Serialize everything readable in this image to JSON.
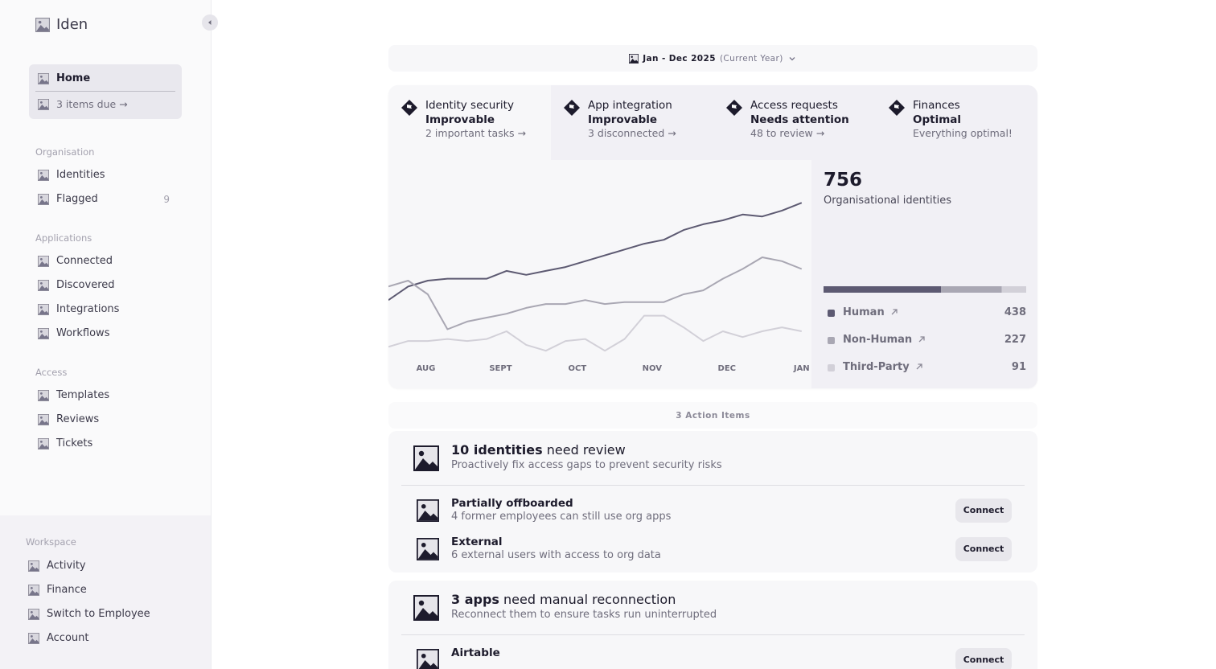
{
  "sidebar": {
    "brand": "Iden",
    "home": {
      "label": "Home",
      "due": "3 items due →"
    },
    "sections": [
      {
        "title": "Organisation",
        "items": [
          {
            "label": "Identities"
          },
          {
            "label": "Flagged",
            "count": 9
          }
        ]
      },
      {
        "title": "Applications",
        "items": [
          {
            "label": "Connected"
          },
          {
            "label": "Discovered"
          },
          {
            "label": "Integrations"
          },
          {
            "label": "Workflows"
          }
        ]
      },
      {
        "title": "Access",
        "items": [
          {
            "label": "Templates"
          },
          {
            "label": "Reviews"
          },
          {
            "label": "Tickets"
          }
        ]
      }
    ],
    "workspace": {
      "title": "Workspace",
      "items": [
        {
          "label": "Activity"
        },
        {
          "label": "Finance"
        },
        {
          "label": "Switch to Employee"
        },
        {
          "label": "Account"
        }
      ]
    }
  },
  "date_range": {
    "label": "Jan - Dec 2025",
    "note": "(Current Year)"
  },
  "tabs": [
    {
      "title": "Identity security",
      "status": "Improvable",
      "detail": "2 important tasks →"
    },
    {
      "title": "App integration",
      "status": "Improvable",
      "detail": "3 disconnected →"
    },
    {
      "title": "Access requests",
      "status": "Needs attention",
      "detail": "48 to review →"
    },
    {
      "title": "Finances",
      "status": "Optimal",
      "detail": "Everything optimal!"
    }
  ],
  "chart_data": {
    "type": "line",
    "total": 756,
    "total_label": "Organisational identities",
    "x": [
      0,
      1,
      2,
      3,
      4,
      5,
      6,
      7,
      8,
      9,
      10,
      11,
      12,
      13,
      14,
      15,
      16,
      17,
      18,
      19,
      20,
      21
    ],
    "xlim": [
      0,
      21.5
    ],
    "xticks": [
      {
        "value": 1.9,
        "label": "AUG"
      },
      {
        "value": 5.7,
        "label": "SEPT"
      },
      {
        "value": 9.6,
        "label": "OCT"
      },
      {
        "value": 13.4,
        "label": "NOV"
      },
      {
        "value": 17.2,
        "label": "DEC"
      },
      {
        "value": 21,
        "label": "JAN"
      }
    ],
    "ylim": [
      0,
      100
    ],
    "series": [
      {
        "name": "Human",
        "color": "#5d5a72",
        "count": 438,
        "values": [
          28,
          35,
          38,
          39,
          39,
          39,
          43,
          41,
          43,
          45,
          48,
          51,
          54,
          57,
          59,
          64,
          67,
          69,
          72,
          71,
          74,
          78
        ]
      },
      {
        "name": "Non-Human",
        "color": "#a9a7b3",
        "count": 227,
        "values": [
          35,
          38,
          31,
          13,
          17,
          19,
          21,
          24,
          26,
          26,
          28,
          26,
          27,
          27,
          27,
          31,
          33,
          39,
          44,
          50,
          48,
          44
        ]
      },
      {
        "name": "Third-Party",
        "color": "#d2d0d8",
        "count": 91,
        "values": [
          4,
          7,
          7,
          8,
          7,
          8,
          12,
          5,
          2,
          7,
          8,
          2,
          8,
          20,
          20,
          14,
          7,
          12,
          9,
          12,
          14,
          12
        ]
      }
    ]
  },
  "actions": {
    "header": "3 Action Items",
    "cards": [
      {
        "title_strong": "10 identities",
        "title_rest": "need review",
        "subtitle": "Proactively fix access gaps to prevent security risks",
        "rows": [
          {
            "title": "Partially offboarded",
            "detail": "4 former employees can still use org apps",
            "button": "Connect"
          },
          {
            "title": "External",
            "detail": "6 external users with access to org data",
            "button": "Connect"
          }
        ]
      },
      {
        "title_strong": "3 apps",
        "title_rest": "need manual reconnection",
        "subtitle": "Reconnect them to ensure tasks run uninterrupted",
        "rows": [
          {
            "title": "Airtable",
            "detail": "",
            "button": "Connect"
          }
        ]
      }
    ]
  }
}
